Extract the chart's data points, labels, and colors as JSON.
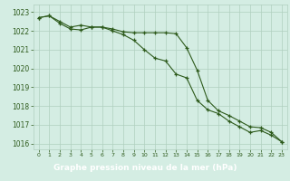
{
  "x": [
    0,
    1,
    2,
    3,
    4,
    5,
    6,
    7,
    8,
    9,
    10,
    11,
    12,
    13,
    14,
    15,
    16,
    17,
    18,
    19,
    20,
    21,
    22,
    23
  ],
  "line1": [
    1022.7,
    1022.8,
    1022.5,
    1022.2,
    1022.3,
    1022.2,
    1022.2,
    1022.1,
    1021.95,
    1021.9,
    1021.9,
    1021.9,
    1021.9,
    1021.85,
    1021.1,
    1019.9,
    1018.3,
    1017.75,
    1017.5,
    1017.2,
    1016.9,
    1016.85,
    1016.6,
    1016.1
  ],
  "line2": [
    1022.7,
    1022.8,
    1022.4,
    1022.1,
    1022.05,
    1022.2,
    1022.2,
    1022.0,
    1021.8,
    1021.5,
    1021.0,
    1020.55,
    1020.4,
    1019.7,
    1019.5,
    1018.3,
    1017.8,
    1017.6,
    1017.2,
    1016.9,
    1016.6,
    1016.7,
    1016.45,
    1016.1
  ],
  "line_color": "#2d5a1b",
  "bg_color": "#d4ede3",
  "grid_color": "#b0cfbf",
  "ylim": [
    1015.7,
    1023.4
  ],
  "yticks": [
    1016,
    1017,
    1018,
    1019,
    1020,
    1021,
    1022,
    1023
  ],
  "xlabel": "Graphe pression niveau de la mer (hPa)",
  "label_bg": "#2d5a1b",
  "label_fg": "#ffffff"
}
